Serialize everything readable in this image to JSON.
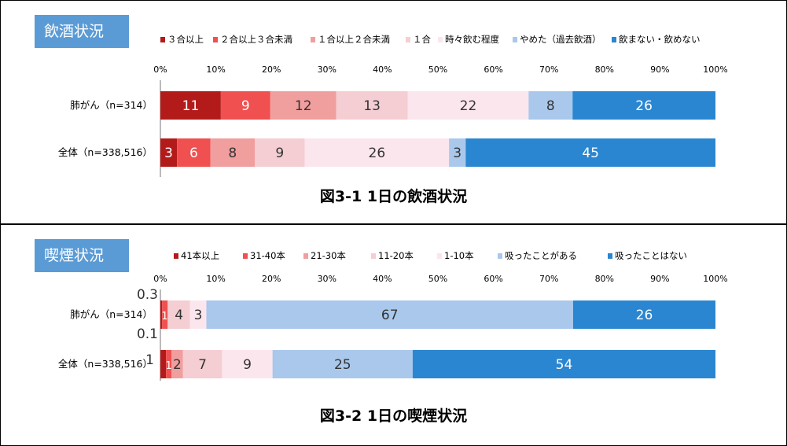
{
  "charts": [
    {
      "tag": "飲酒状況",
      "caption": "図3-1 1日の飲酒状況",
      "chart_data": {
        "type": "bar",
        "orientation": "horizontal-stacked-100",
        "title": "図3-1 1日の飲酒状況",
        "categories": [
          "肺がん（n=314）",
          "全体（n=338,516）"
        ],
        "xlim": [
          0,
          100
        ],
        "xticks": [
          "0%",
          "10%",
          "20%",
          "30%",
          "40%",
          "50%",
          "60%",
          "70%",
          "80%",
          "90%",
          "100%"
        ],
        "legend_position": "top",
        "series": [
          {
            "name": "３合以上",
            "values": [
              11,
              3
            ],
            "labels": [
              "11",
              "3"
            ],
            "color": "#b31b1b"
          },
          {
            "name": "２合以上３合未満",
            "values": [
              9,
              6
            ],
            "labels": [
              "9",
              "6"
            ],
            "color": "#f05050"
          },
          {
            "name": "１合以上２合未満",
            "values": [
              12,
              8
            ],
            "labels": [
              "12",
              "8"
            ],
            "color": "#f19e9e"
          },
          {
            "name": "１合",
            "values": [
              13,
              9
            ],
            "labels": [
              "13",
              "9"
            ],
            "color": "#f4ced3"
          },
          {
            "name": "時々飲む程度",
            "values": [
              22,
              26
            ],
            "labels": [
              "22",
              "26"
            ],
            "color": "#fce6ee"
          },
          {
            "name": "やめた（過去飲酒）",
            "values": [
              8,
              3
            ],
            "labels": [
              "8",
              "3"
            ],
            "color": "#a9c8ec"
          },
          {
            "name": "飲まない・飲めない",
            "values": [
              26,
              45
            ],
            "labels": [
              "26",
              "45"
            ],
            "color": "#2a86d0"
          }
        ]
      }
    },
    {
      "tag": "喫煙状況",
      "caption": "図3-2 1日の喫煙状況",
      "chart_data": {
        "type": "bar",
        "orientation": "horizontal-stacked-100",
        "title": "図3-2 1日の喫煙状況",
        "categories": [
          "肺がん（n=314）",
          "全体（n=338,516）"
        ],
        "xlim": [
          0,
          100
        ],
        "xticks": [
          "0%",
          "10%",
          "20%",
          "30%",
          "40%",
          "50%",
          "60%",
          "70%",
          "80%",
          "90%",
          "100%"
        ],
        "legend_position": "top",
        "series": [
          {
            "name": "41本以上",
            "values": [
              0.3,
              1
            ],
            "labels": [
              "0.3",
              "1"
            ],
            "color": "#b31b1b"
          },
          {
            "name": "31-40本",
            "values": [
              1,
              1
            ],
            "labels": [
              "1",
              "1"
            ],
            "color": "#f05050"
          },
          {
            "name": "21-30本",
            "values": [
              0.1,
              2
            ],
            "labels": [
              "0.1",
              "2"
            ],
            "color": "#f19e9e"
          },
          {
            "name": "11-20本",
            "values": [
              4,
              7
            ],
            "labels": [
              "4",
              "7"
            ],
            "color": "#f4ced3"
          },
          {
            "name": "1-10本",
            "values": [
              3,
              9
            ],
            "labels": [
              "3",
              "9"
            ],
            "color": "#fce6ee"
          },
          {
            "name": "吸ったことがある",
            "values": [
              67,
              25
            ],
            "labels": [
              "67",
              "25"
            ],
            "color": "#a9c8ec"
          },
          {
            "name": "吸ったことはない",
            "values": [
              26,
              54
            ],
            "labels": [
              "26",
              "54"
            ],
            "color": "#2a86d0"
          }
        ]
      }
    }
  ]
}
